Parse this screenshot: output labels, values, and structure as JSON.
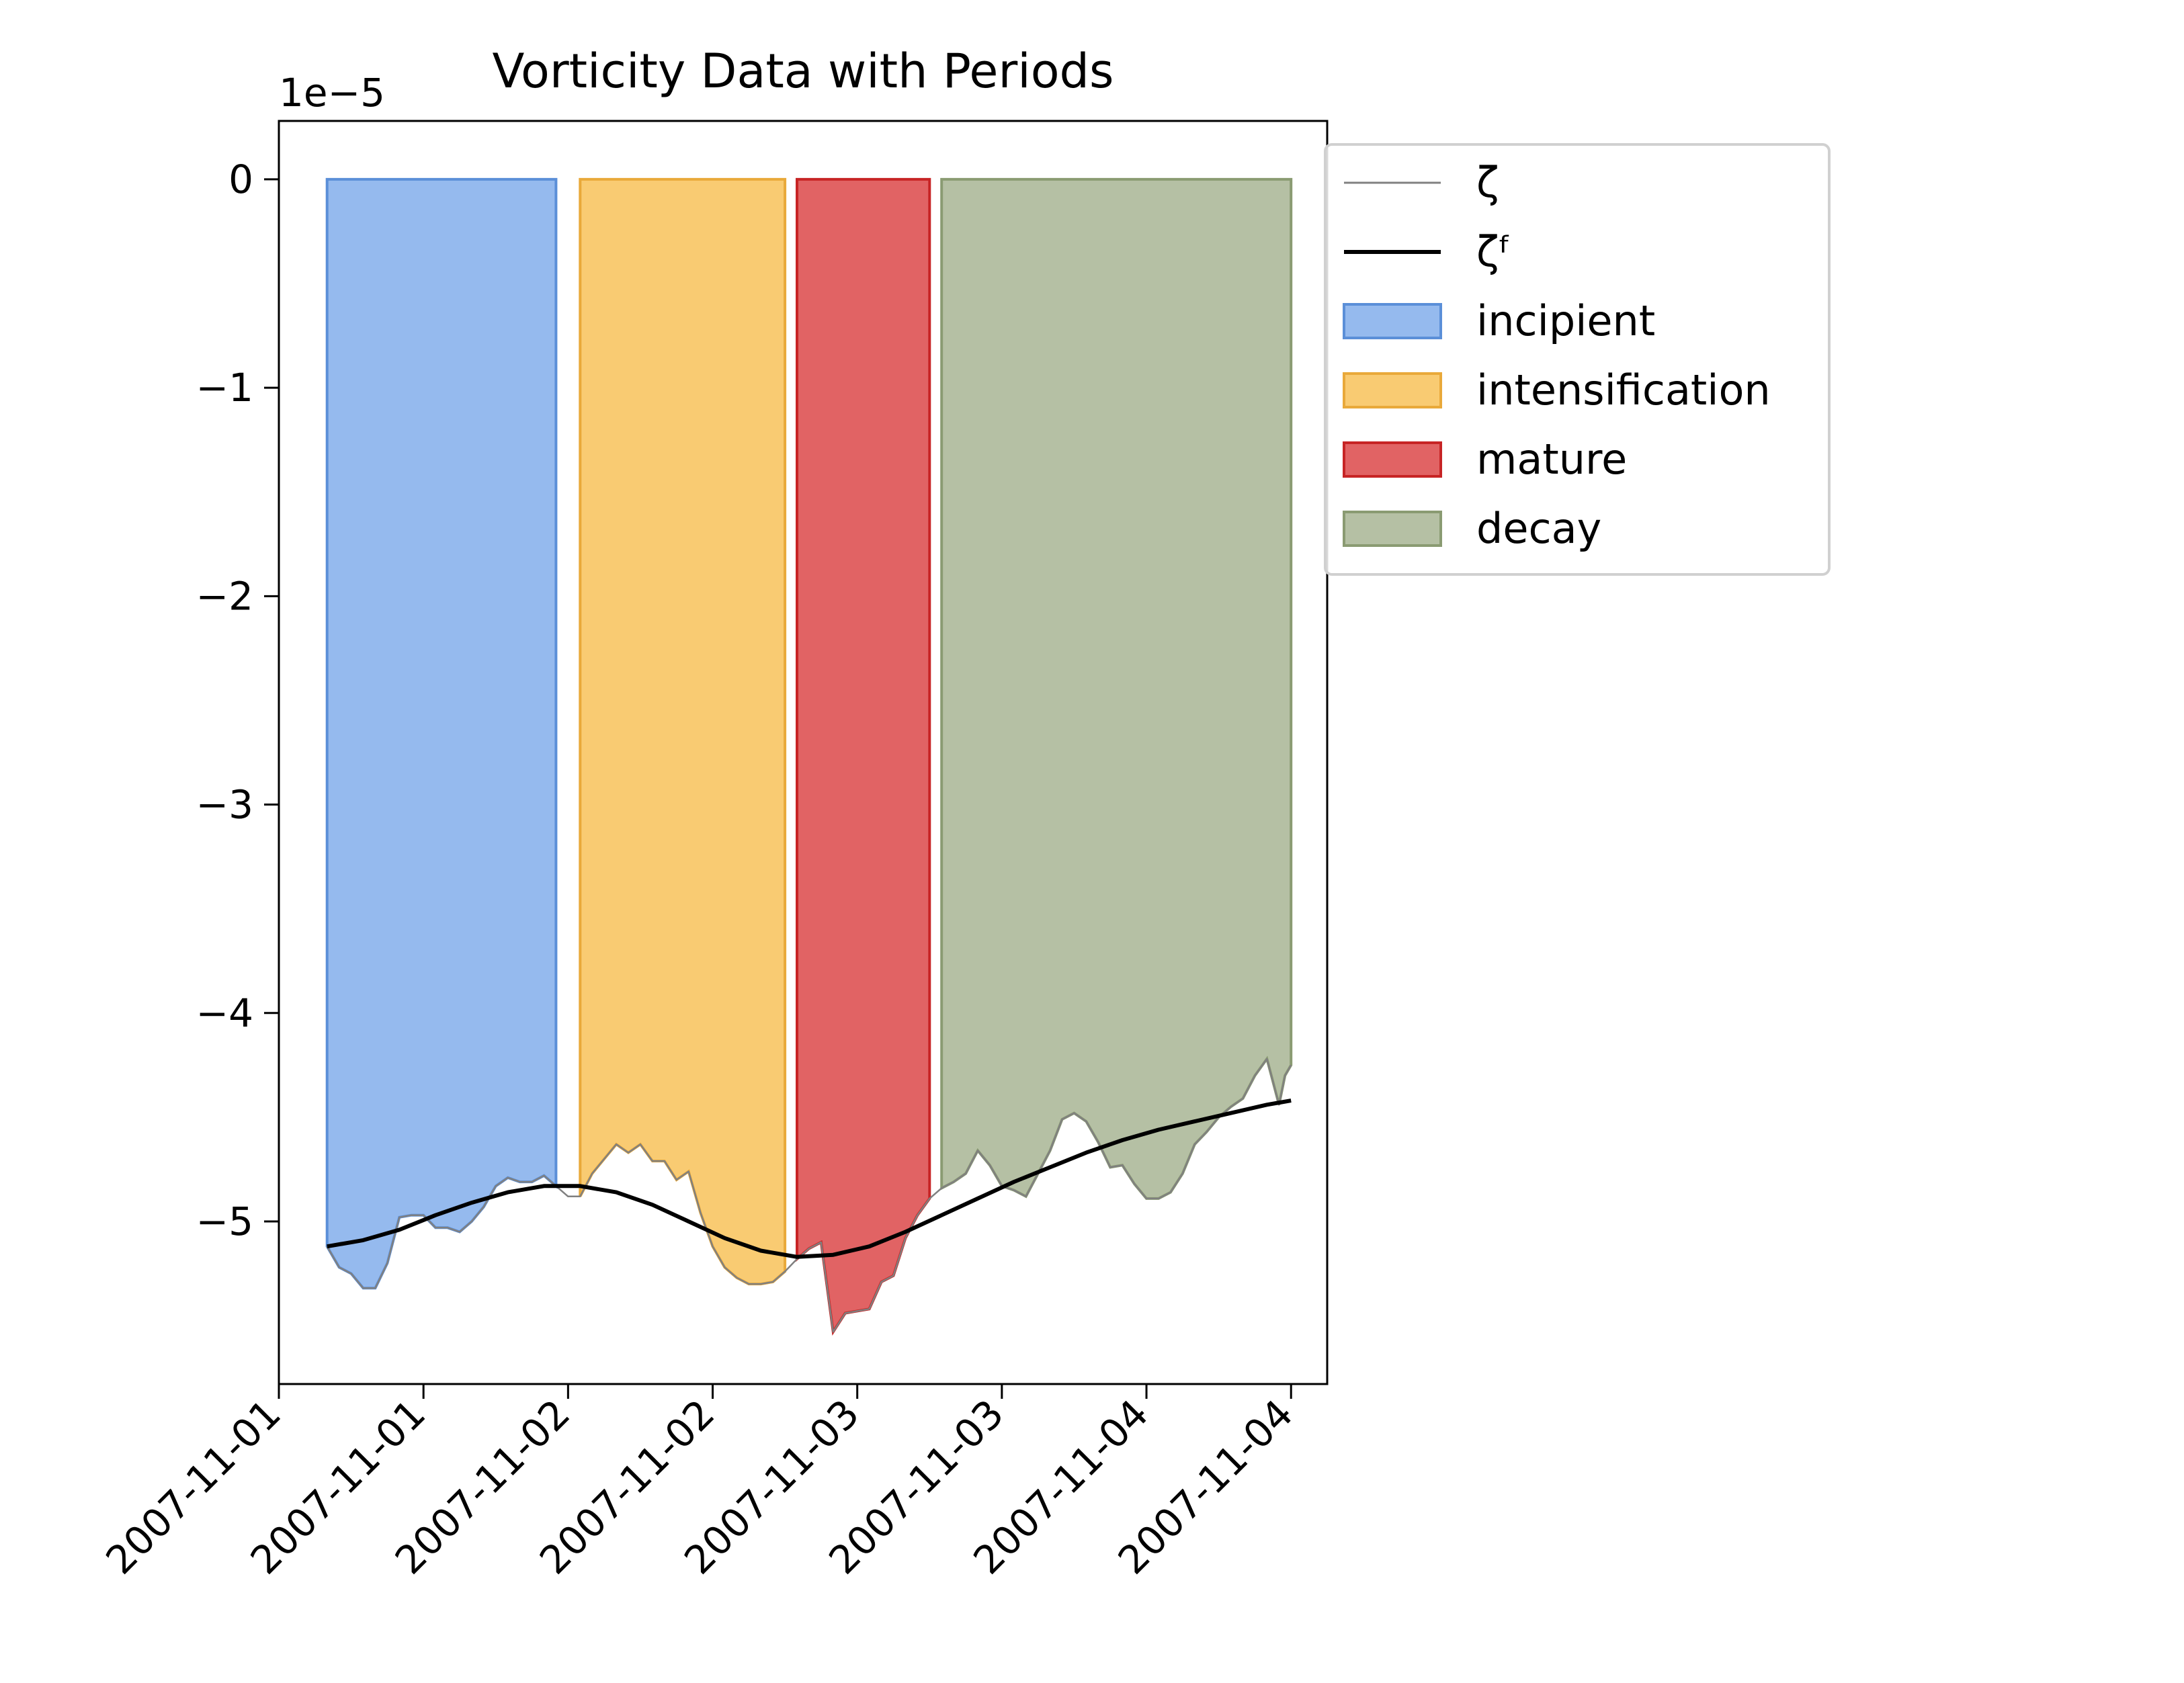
{
  "chart_data": {
    "type": "line",
    "title": "Vorticity Data with Periods",
    "offset_label": "1e−5",
    "xlabel": "",
    "ylabel": "",
    "xlim": [
      "2007-11-01T00:00",
      "2007-11-04T15:00"
    ],
    "ylim": [
      -5.78,
      0.28
    ],
    "y_scale_factor": 1e-05,
    "x_ticks": [
      {
        "t": "2007-11-01T00:00",
        "label": "2007-11-01"
      },
      {
        "t": "2007-11-01T12:00",
        "label": "2007-11-01"
      },
      {
        "t": "2007-11-02T00:00",
        "label": "2007-11-02"
      },
      {
        "t": "2007-11-02T12:00",
        "label": "2007-11-02"
      },
      {
        "t": "2007-11-03T00:00",
        "label": "2007-11-03"
      },
      {
        "t": "2007-11-03T12:00",
        "label": "2007-11-03"
      },
      {
        "t": "2007-11-04T00:00",
        "label": "2007-11-04"
      },
      {
        "t": "2007-11-04T12:00",
        "label": "2007-11-04"
      }
    ],
    "y_ticks": [
      {
        "v": 0,
        "label": "0"
      },
      {
        "v": -1,
        "label": "−1"
      },
      {
        "v": -2,
        "label": "−2"
      },
      {
        "v": -3,
        "label": "−3"
      },
      {
        "v": -4,
        "label": "−4"
      },
      {
        "v": -5,
        "label": "−5"
      }
    ],
    "periods": [
      {
        "name": "incipient",
        "start": "2007-11-01T04:00",
        "end": "2007-11-01T23:00",
        "fill": "#6ca0e8",
        "edge": "#5b8fd8"
      },
      {
        "name": "intensification",
        "start": "2007-11-02T01:00",
        "end": "2007-11-02T18:00",
        "fill": "#f6b73c",
        "edge": "#e9a93a"
      },
      {
        "name": "mature",
        "start": "2007-11-02T19:00",
        "end": "2007-11-03T06:00",
        "fill": "#d62728",
        "edge": "#c72425"
      },
      {
        "name": "decay",
        "start": "2007-11-03T07:00",
        "end": "2007-11-04T12:00",
        "fill": "#98a881",
        "edge": "#8a9b72"
      }
    ],
    "series": [
      {
        "name": "ζ",
        "color": "#808080",
        "points": [
          [
            "2007-11-01T04:00",
            -5.12
          ],
          [
            "2007-11-01T05:00",
            -5.22
          ],
          [
            "2007-11-01T06:00",
            -5.25
          ],
          [
            "2007-11-01T07:00",
            -5.32
          ],
          [
            "2007-11-01T08:00",
            -5.32
          ],
          [
            "2007-11-01T09:00",
            -5.2
          ],
          [
            "2007-11-01T10:00",
            -4.98
          ],
          [
            "2007-11-01T11:00",
            -4.97
          ],
          [
            "2007-11-01T12:00",
            -4.97
          ],
          [
            "2007-11-01T13:00",
            -5.03
          ],
          [
            "2007-11-01T14:00",
            -5.03
          ],
          [
            "2007-11-01T15:00",
            -5.05
          ],
          [
            "2007-11-01T16:00",
            -5.0
          ],
          [
            "2007-11-01T17:00",
            -4.93
          ],
          [
            "2007-11-01T18:00",
            -4.83
          ],
          [
            "2007-11-01T19:00",
            -4.79
          ],
          [
            "2007-11-01T20:00",
            -4.81
          ],
          [
            "2007-11-01T21:00",
            -4.81
          ],
          [
            "2007-11-01T22:00",
            -4.78
          ],
          [
            "2007-11-01T23:00",
            -4.83
          ],
          [
            "2007-11-02T00:00",
            -4.88
          ],
          [
            "2007-11-02T01:00",
            -4.88
          ],
          [
            "2007-11-02T02:00",
            -4.77
          ],
          [
            "2007-11-02T03:00",
            -4.7
          ],
          [
            "2007-11-02T04:00",
            -4.63
          ],
          [
            "2007-11-02T05:00",
            -4.67
          ],
          [
            "2007-11-02T06:00",
            -4.63
          ],
          [
            "2007-11-02T07:00",
            -4.71
          ],
          [
            "2007-11-02T08:00",
            -4.71
          ],
          [
            "2007-11-02T09:00",
            -4.8
          ],
          [
            "2007-11-02T10:00",
            -4.76
          ],
          [
            "2007-11-02T11:00",
            -4.96
          ],
          [
            "2007-11-02T12:00",
            -5.12
          ],
          [
            "2007-11-02T13:00",
            -5.22
          ],
          [
            "2007-11-02T14:00",
            -5.27
          ],
          [
            "2007-11-02T15:00",
            -5.3
          ],
          [
            "2007-11-02T16:00",
            -5.3
          ],
          [
            "2007-11-02T17:00",
            -5.29
          ],
          [
            "2007-11-02T18:00",
            -5.24
          ],
          [
            "2007-11-02T19:00",
            -5.18
          ],
          [
            "2007-11-02T20:00",
            -5.13
          ],
          [
            "2007-11-02T21:00",
            -5.1
          ],
          [
            "2007-11-02T22:00",
            -5.53
          ],
          [
            "2007-11-02T23:00",
            -5.44
          ],
          [
            "2007-11-03T00:00",
            -5.43
          ],
          [
            "2007-11-03T01:00",
            -5.42
          ],
          [
            "2007-11-03T02:00",
            -5.29
          ],
          [
            "2007-11-03T03:00",
            -5.26
          ],
          [
            "2007-11-03T04:00",
            -5.08
          ],
          [
            "2007-11-03T05:00",
            -4.97
          ],
          [
            "2007-11-03T06:00",
            -4.89
          ],
          [
            "2007-11-03T07:00",
            -4.84
          ],
          [
            "2007-11-03T08:00",
            -4.81
          ],
          [
            "2007-11-03T09:00",
            -4.77
          ],
          [
            "2007-11-03T10:00",
            -4.66
          ],
          [
            "2007-11-03T11:00",
            -4.73
          ],
          [
            "2007-11-03T12:00",
            -4.83
          ],
          [
            "2007-11-03T13:00",
            -4.85
          ],
          [
            "2007-11-03T14:00",
            -4.88
          ],
          [
            "2007-11-03T15:00",
            -4.77
          ],
          [
            "2007-11-03T16:00",
            -4.66
          ],
          [
            "2007-11-03T17:00",
            -4.51
          ],
          [
            "2007-11-03T18:00",
            -4.48
          ],
          [
            "2007-11-03T19:00",
            -4.52
          ],
          [
            "2007-11-03T20:00",
            -4.62
          ],
          [
            "2007-11-03T21:00",
            -4.74
          ],
          [
            "2007-11-03T22:00",
            -4.73
          ],
          [
            "2007-11-03T23:00",
            -4.82
          ],
          [
            "2007-11-04T00:00",
            -4.89
          ],
          [
            "2007-11-04T01:00",
            -4.89
          ],
          [
            "2007-11-04T02:00",
            -4.86
          ],
          [
            "2007-11-04T03:00",
            -4.77
          ],
          [
            "2007-11-04T04:00",
            -4.63
          ],
          [
            "2007-11-04T05:00",
            -4.57
          ],
          [
            "2007-11-04T06:00",
            -4.5
          ],
          [
            "2007-11-04T07:00",
            -4.45
          ],
          [
            "2007-11-04T08:00",
            -4.41
          ],
          [
            "2007-11-04T09:00",
            -4.3
          ],
          [
            "2007-11-04T10:00",
            -4.22
          ],
          [
            "2007-11-04T11:00",
            -4.44
          ],
          [
            "2007-11-04T11:30",
            -4.3
          ],
          [
            "2007-11-04T12:00",
            -4.25
          ]
        ]
      },
      {
        "name": "ζᶠ",
        "color": "#000000",
        "points": [
          [
            "2007-11-01T04:00",
            -5.12
          ],
          [
            "2007-11-01T07:00",
            -5.09
          ],
          [
            "2007-11-01T10:00",
            -5.04
          ],
          [
            "2007-11-01T13:00",
            -4.97
          ],
          [
            "2007-11-01T16:00",
            -4.91
          ],
          [
            "2007-11-01T19:00",
            -4.86
          ],
          [
            "2007-11-01T22:00",
            -4.83
          ],
          [
            "2007-11-02T01:00",
            -4.83
          ],
          [
            "2007-11-02T04:00",
            -4.86
          ],
          [
            "2007-11-02T07:00",
            -4.92
          ],
          [
            "2007-11-02T10:00",
            -5.0
          ],
          [
            "2007-11-02T13:00",
            -5.08
          ],
          [
            "2007-11-02T16:00",
            -5.14
          ],
          [
            "2007-11-02T19:00",
            -5.17
          ],
          [
            "2007-11-02T22:00",
            -5.16
          ],
          [
            "2007-11-03T01:00",
            -5.12
          ],
          [
            "2007-11-03T04:00",
            -5.05
          ],
          [
            "2007-11-03T07:00",
            -4.97
          ],
          [
            "2007-11-03T10:00",
            -4.89
          ],
          [
            "2007-11-03T13:00",
            -4.81
          ],
          [
            "2007-11-03T16:00",
            -4.74
          ],
          [
            "2007-11-03T19:00",
            -4.67
          ],
          [
            "2007-11-03T22:00",
            -4.61
          ],
          [
            "2007-11-04T01:00",
            -4.56
          ],
          [
            "2007-11-04T04:00",
            -4.52
          ],
          [
            "2007-11-04T07:00",
            -4.48
          ],
          [
            "2007-11-04T10:00",
            -4.44
          ],
          [
            "2007-11-04T12:00",
            -4.42
          ]
        ]
      }
    ],
    "legend": {
      "placement": "upper-left-outside",
      "entries": [
        {
          "label": "ζ",
          "kind": "line",
          "ref": 0
        },
        {
          "label": "ζᶠ",
          "kind": "line",
          "ref": 1
        },
        {
          "label": "incipient",
          "kind": "patch",
          "ref": 0
        },
        {
          "label": "intensification",
          "kind": "patch",
          "ref": 1
        },
        {
          "label": "mature",
          "kind": "patch",
          "ref": 2
        },
        {
          "label": "decay",
          "kind": "patch",
          "ref": 3
        }
      ]
    },
    "grid": false
  }
}
